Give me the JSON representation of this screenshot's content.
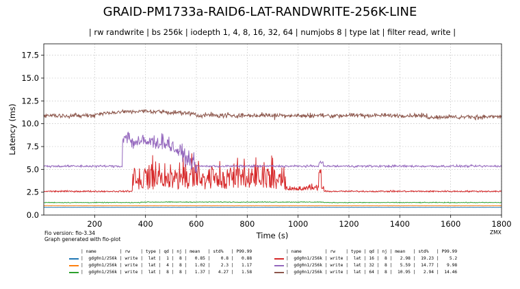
{
  "chart_data": {
    "type": "line",
    "title": "GRAID-PM1733a-RAID6-LAT-RANDWRITE-256K-LINE",
    "subtitle": "| rw randwrite | bs 256k | iodepth 1, 4, 8, 16, 32, 64 | numjobs 8 | type lat | filter read, write |",
    "xlabel": "Time (s)",
    "ylabel": "Latency (ms)",
    "xlim": [
      0,
      1800
    ],
    "ylim": [
      0,
      18.75
    ],
    "x_ticks": [
      200,
      400,
      600,
      800,
      1000,
      1200,
      1400,
      1600,
      1800
    ],
    "x_tick_labels": [
      "200",
      "400",
      "600",
      "800",
      "1000",
      "1200",
      "1400",
      "1600",
      "1800"
    ],
    "y_ticks": [
      0,
      2.5,
      5,
      7.5,
      10,
      12.5,
      15,
      17.5
    ],
    "y_tick_labels": [
      "0.0",
      "2.5",
      "5.0",
      "7.5",
      "10.0",
      "12.5",
      "15.0",
      "17.5"
    ],
    "grid": true,
    "legend_position": "bottom",
    "fio_version": "Fio version: fio-3.34",
    "generated_with": "Graph generated with fio-plot",
    "corner_label": "ZMX",
    "legend_header": "| name         | rw    | type | qd | nj | mean   | std%   | P99.99",
    "series": [
      {
        "name": "gdg0n1/256k",
        "rw": "write",
        "type": "lat",
        "qd": 1,
        "nj": 8,
        "mean": 0.85,
        "std_pct": 0.8,
        "p9999": 0.88,
        "color": "#1f77b4",
        "legend_text": "|  gdg0n1/256k | write |  lat |  1 |  8 |   0.85 |    0.8 |   0.88"
      },
      {
        "name": "gdg0n1/256k",
        "rw": "write",
        "type": "lat",
        "qd": 4,
        "nj": 8,
        "mean": 1.02,
        "std_pct": 2.3,
        "p9999": 1.17,
        "color": "#ff7f0e",
        "legend_text": "|  gdg0n1/256k | write |  lat |  4 |  8 |   1.02 |    2.3 |   1.17"
      },
      {
        "name": "gdg0n1/256k",
        "rw": "write",
        "type": "lat",
        "qd": 8,
        "nj": 8,
        "mean": 1.37,
        "std_pct": 4.27,
        "p9999": 1.58,
        "color": "#2ca02c",
        "legend_text": "|  gdg0n1/256k | write |  lat |  8 |  8 |   1.37 |   4.27 |   1.58"
      },
      {
        "name": "gdg0n1/256k",
        "rw": "write",
        "type": "lat",
        "qd": 16,
        "nj": 8,
        "mean": 2.98,
        "std_pct": 19.23,
        "p9999": 5.2,
        "color": "#d62728",
        "legend_text": "|  gdg0n1/256k | write |  lat | 16 |  8 |   2.98 |  19.23 |    5.2"
      },
      {
        "name": "gdg0n1/256k",
        "rw": "write",
        "type": "lat",
        "qd": 32,
        "nj": 8,
        "mean": 5.59,
        "std_pct": 14.77,
        "p9999": 9.98,
        "color": "#9467bd",
        "legend_text": "|  gdg0n1/256k | write |  lat | 32 |  8 |   5.59 |  14.77 |   9.98"
      },
      {
        "name": "gdg0n1/256k",
        "rw": "write",
        "type": "lat",
        "qd": 64,
        "nj": 8,
        "mean": 10.95,
        "std_pct": 2.94,
        "p9999": 14.46,
        "color": "#8c564b",
        "legend_text": "|  gdg0n1/256k | write |  lat | 64 |  8 |  10.95 |   2.94 |  14.46"
      }
    ]
  }
}
